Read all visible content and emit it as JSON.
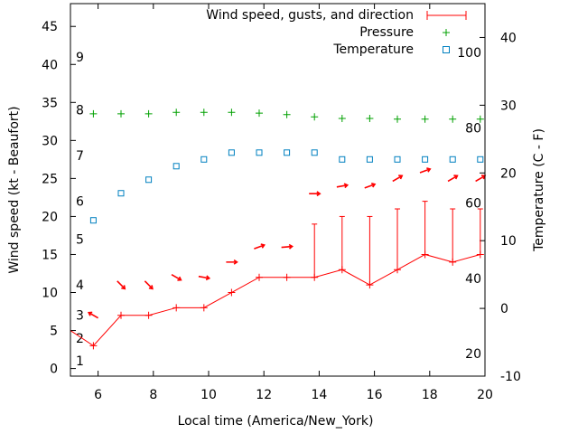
{
  "chart_data": {
    "type": "line",
    "xlabel": "Local time (America/New_York)",
    "ylabel": "Wind speed (kt - Beaufort)",
    "y2label": "Temperature (C - F)",
    "xlim": [
      5,
      20
    ],
    "ylim": [
      -1,
      48
    ],
    "y2lim": [
      -10,
      45
    ],
    "x_ticks": [
      "6",
      "8",
      "10",
      "12",
      "14",
      "16",
      "18",
      "20"
    ],
    "y_ticks": [
      "0",
      "5",
      "10",
      "15",
      "20",
      "25",
      "30",
      "35",
      "40",
      "45"
    ],
    "y2_ticks": [
      "-10",
      "0",
      "10",
      "20",
      "30",
      "40"
    ],
    "beaufort_labels": [
      "1",
      "2",
      "3",
      "4",
      "5",
      "6",
      "7",
      "8",
      "9"
    ],
    "fahrenheit_labels": [
      "20",
      "40",
      "60",
      "80",
      "100"
    ],
    "legend": {
      "position": "top-right",
      "entries": [
        "Wind speed, gusts, and direction",
        "Pressure",
        "Temperature"
      ]
    },
    "colors": {
      "wind": "#ff0000",
      "pressure": "#00a000",
      "temperature": "#0080c0"
    },
    "series": [
      {
        "name": "Wind speed, gusts, and direction",
        "x": [
          5.83,
          6.83,
          7.83,
          8.83,
          9.83,
          10.83,
          11.83,
          12.83,
          13.83,
          14.83,
          15.83,
          16.83,
          17.83,
          18.83,
          19.83
        ],
        "values": [
          3,
          7,
          7,
          8,
          8,
          10,
          12,
          12,
          12,
          13,
          11,
          13,
          15,
          14,
          15
        ],
        "gusts": [
          null,
          null,
          null,
          null,
          null,
          null,
          null,
          null,
          19,
          20,
          20,
          21,
          22,
          21,
          21
        ],
        "direction_arrow_y": [
          7,
          11,
          11,
          12,
          12,
          14,
          16,
          16,
          23,
          24,
          24,
          25,
          26,
          25,
          25
        ],
        "lead_in": {
          "x": 5,
          "value": 5
        }
      },
      {
        "name": "Pressure",
        "x": [
          5.83,
          6.83,
          7.83,
          8.83,
          9.83,
          10.83,
          11.83,
          12.83,
          13.83,
          14.83,
          15.83,
          16.83,
          17.83,
          18.83,
          19.83
        ],
        "values": [
          33.5,
          33.5,
          33.5,
          33.7,
          33.7,
          33.7,
          33.6,
          33.4,
          33.1,
          32.9,
          32.9,
          32.8,
          32.8,
          32.8,
          32.8
        ]
      },
      {
        "name": "Temperature",
        "x": [
          5.83,
          6.83,
          7.83,
          8.83,
          9.83,
          10.83,
          11.83,
          12.83,
          13.83,
          14.83,
          15.83,
          16.83,
          17.83,
          18.83,
          19.83
        ],
        "values": [
          13,
          17,
          19,
          21,
          22,
          23,
          23,
          23,
          23,
          22,
          22,
          22,
          22,
          22,
          22
        ]
      }
    ]
  }
}
